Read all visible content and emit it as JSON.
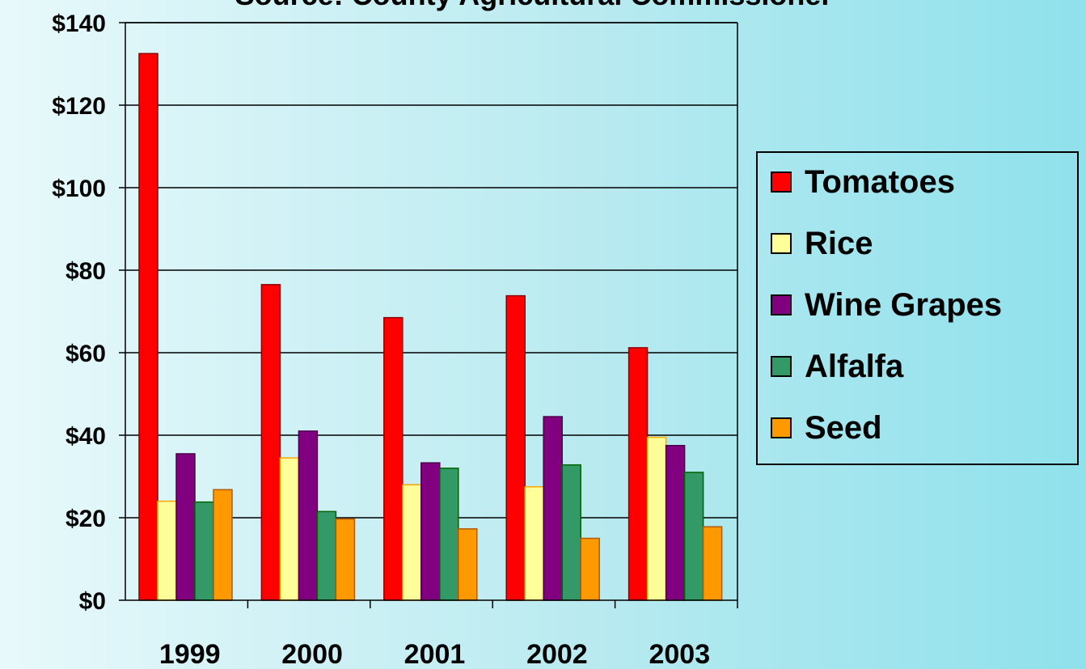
{
  "chart_data": {
    "type": "bar",
    "title": "Source: County Agricultural Commissioner",
    "xlabel": "",
    "ylabel": "",
    "categories": [
      "1999",
      "2000",
      "2001",
      "2002",
      "2003"
    ],
    "ylim": [
      0,
      140
    ],
    "yticks": [
      "$0",
      "$20",
      "$40",
      "$60",
      "$80",
      "$100",
      "$120",
      "$140"
    ],
    "grid": "horizontal",
    "legend_position": "right",
    "series": [
      {
        "name": "Tomatoes",
        "color": "#ff0000",
        "border": "#8b0000",
        "values": [
          132.5,
          76.5,
          68.5,
          73.8,
          61.2
        ]
      },
      {
        "name": "Rice",
        "color": "#ffff99",
        "border": "#ffa500",
        "values": [
          24.0,
          34.5,
          28.0,
          27.5,
          39.5
        ]
      },
      {
        "name": "Wine Grapes",
        "color": "#800080",
        "border": "#4b004b",
        "values": [
          35.5,
          41.0,
          33.3,
          44.5,
          37.5
        ]
      },
      {
        "name": "Alfalfa",
        "color": "#339966",
        "border": "#006400",
        "values": [
          23.8,
          21.5,
          32.0,
          32.8,
          31.0
        ]
      },
      {
        "name": "Seed",
        "color": "#ff9900",
        "border": "#b35900",
        "values": [
          26.8,
          19.7,
          17.3,
          15.0,
          17.8
        ]
      }
    ]
  }
}
